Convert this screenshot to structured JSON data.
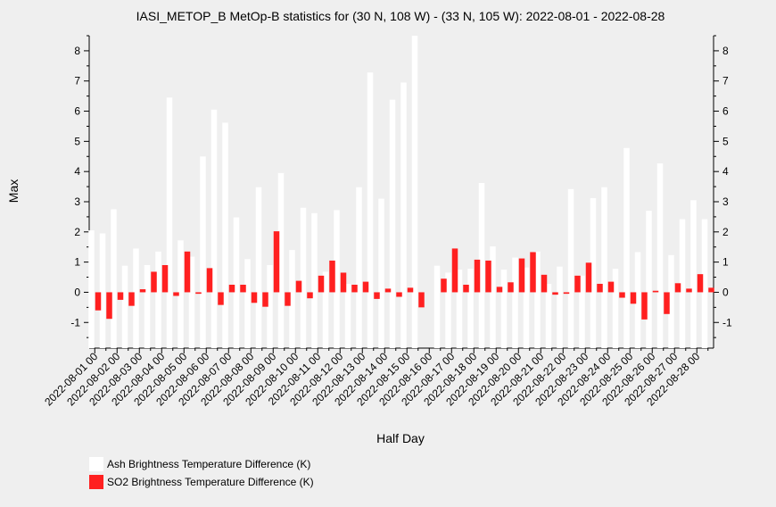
{
  "chart_data": {
    "type": "bar",
    "title": "IASI_METOP_B MetOp-B statistics for (30 N, 108 W) - (33 N, 105 W): 2022-08-01 - 2022-08-28",
    "xlabel": "Half Day",
    "ylabel": "Max",
    "ylim": [
      -1.85,
      8.5
    ],
    "yticks": [
      -1,
      0,
      1,
      2,
      3,
      4,
      5,
      6,
      7,
      8
    ],
    "tick_labels": [
      "2022-08-01 00",
      "2022-08-02 00",
      "2022-08-03 00",
      "2022-08-04 00",
      "2022-08-05 00",
      "2022-08-06 00",
      "2022-08-07 00",
      "2022-08-08 00",
      "2022-08-09 00",
      "2022-08-10 00",
      "2022-08-11 00",
      "2022-08-12 00",
      "2022-08-13 00",
      "2022-08-14 00",
      "2022-08-15 00",
      "2022-08-16 00",
      "2022-08-17 00",
      "2022-08-18 00",
      "2022-08-19 00",
      "2022-08-20 00",
      "2022-08-21 00",
      "2022-08-22 00",
      "2022-08-23 00",
      "2022-08-24 00",
      "2022-08-25 00",
      "2022-08-26 00",
      "2022-08-27 00",
      "2022-08-28 00"
    ],
    "categories": [
      "2022-08-01 00",
      "2022-08-01 12",
      "2022-08-02 00",
      "2022-08-02 12",
      "2022-08-03 00",
      "2022-08-03 12",
      "2022-08-04 00",
      "2022-08-04 12",
      "2022-08-05 00",
      "2022-08-05 12",
      "2022-08-06 00",
      "2022-08-06 12",
      "2022-08-07 00",
      "2022-08-07 12",
      "2022-08-08 00",
      "2022-08-08 12",
      "2022-08-09 00",
      "2022-08-09 12",
      "2022-08-10 00",
      "2022-08-10 12",
      "2022-08-11 00",
      "2022-08-11 12",
      "2022-08-12 00",
      "2022-08-12 12",
      "2022-08-13 00",
      "2022-08-13 12",
      "2022-08-14 00",
      "2022-08-14 12",
      "2022-08-15 00",
      "2022-08-15 12",
      "2022-08-16 00",
      "2022-08-16 12",
      "2022-08-17 00",
      "2022-08-17 12",
      "2022-08-18 00",
      "2022-08-18 12",
      "2022-08-19 00",
      "2022-08-19 12",
      "2022-08-20 00",
      "2022-08-20 12",
      "2022-08-21 00",
      "2022-08-21 12",
      "2022-08-22 00",
      "2022-08-22 12",
      "2022-08-23 00",
      "2022-08-23 12",
      "2022-08-24 00",
      "2022-08-24 12",
      "2022-08-25 00",
      "2022-08-25 12",
      "2022-08-26 00",
      "2022-08-26 12",
      "2022-08-27 00",
      "2022-08-27 12",
      "2022-08-28 00",
      "2022-08-28 12"
    ],
    "series": [
      {
        "name": "Ash Brightness Temperature Difference (K)",
        "color": "#ffffff",
        "values": [
          2.05,
          1.95,
          2.75,
          0.88,
          1.45,
          0.9,
          1.35,
          6.45,
          1.72,
          1.18,
          4.5,
          6.05,
          5.62,
          2.48,
          1.1,
          3.48,
          0.9,
          3.95,
          1.4,
          2.8,
          2.62,
          0.68,
          2.72,
          0.28,
          3.48,
          7.28,
          3.1,
          6.38,
          6.95,
          8.5,
          null,
          0.88,
          0.65,
          0.75,
          0.78,
          3.62,
          1.52,
          0.75,
          1.15,
          0.82,
          1.35,
          0.28,
          0.85,
          3.42,
          0.55,
          3.12,
          3.48,
          0.78,
          4.78,
          1.33,
          2.7,
          4.27,
          1.23,
          2.42,
          3.05,
          2.42
        ]
      },
      {
        "name": "SO2 Brightness Temperature Difference (K)",
        "color": "#ff2020",
        "values": [
          -0.6,
          -0.88,
          -0.25,
          -0.45,
          0.1,
          0.68,
          0.9,
          -0.12,
          1.35,
          -0.05,
          0.8,
          -0.42,
          0.25,
          0.25,
          -0.35,
          -0.48,
          2.02,
          -0.45,
          0.38,
          -0.2,
          0.55,
          1.05,
          0.65,
          0.25,
          0.35,
          -0.22,
          0.12,
          -0.15,
          0.15,
          -0.5,
          null,
          0.45,
          1.45,
          0.25,
          1.08,
          1.05,
          0.18,
          0.33,
          1.12,
          1.33,
          0.58,
          -0.08,
          -0.05,
          0.55,
          0.98,
          0.28,
          0.35,
          -0.18,
          -0.38,
          -0.9,
          0.05,
          -0.72,
          0.3,
          0.12,
          0.6,
          0.15
        ]
      }
    ],
    "legend_position": "bottom-left",
    "grid": false
  }
}
